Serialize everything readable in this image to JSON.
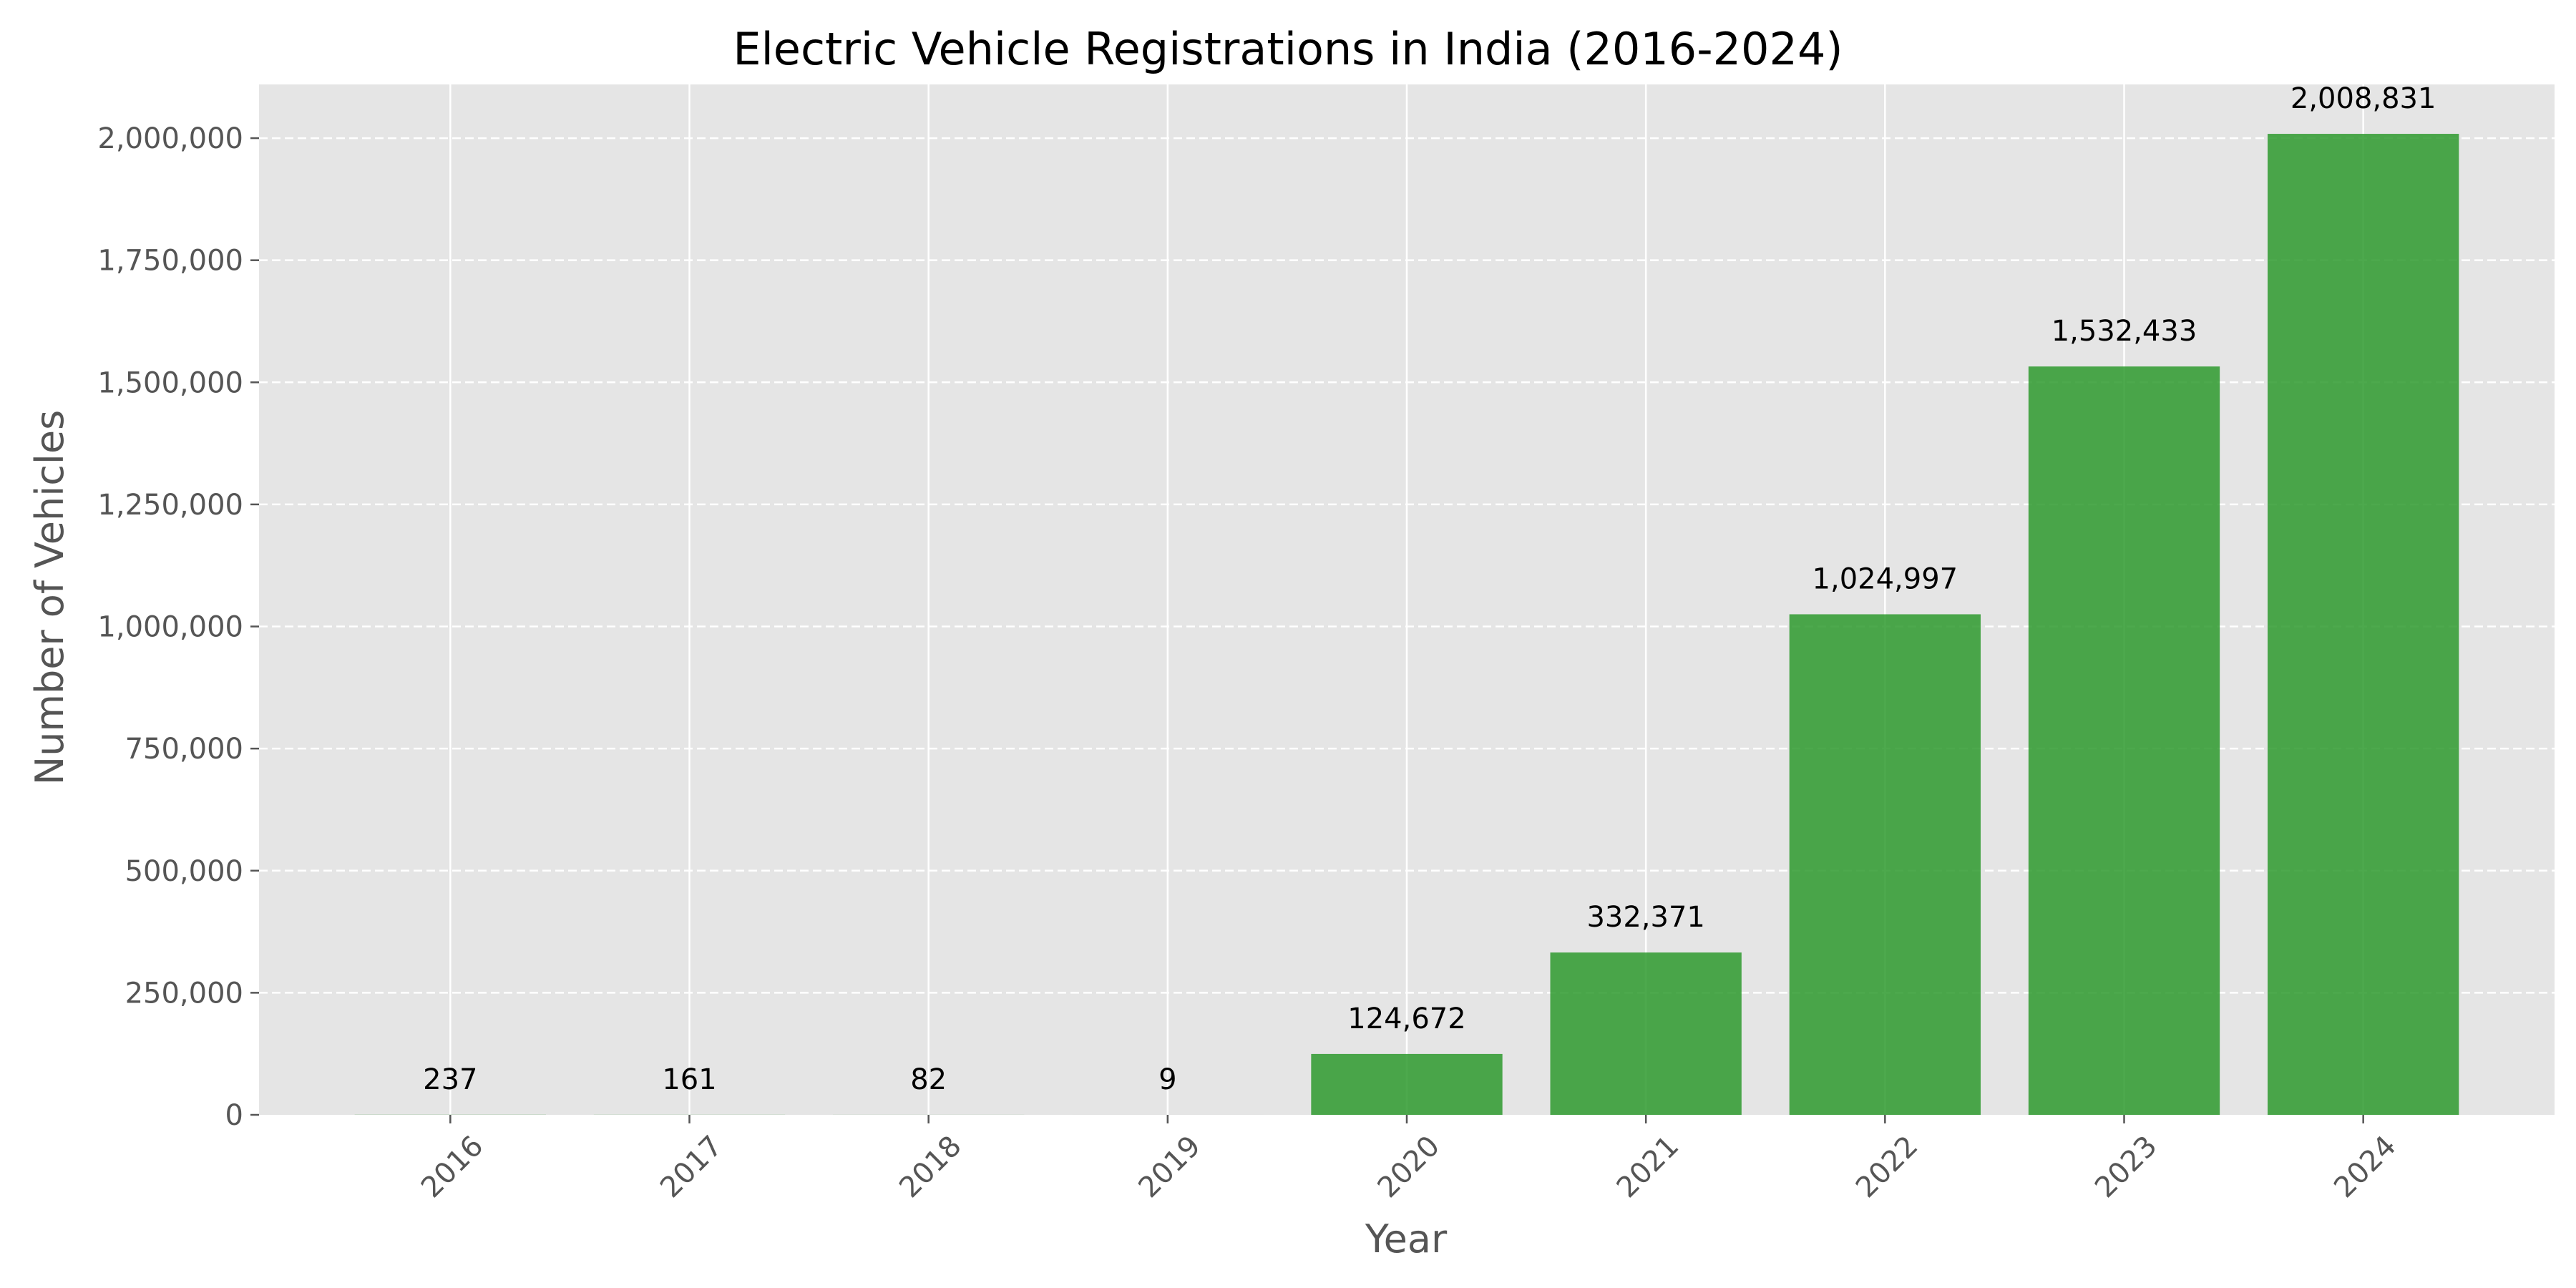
{
  "chart_data": {
    "type": "bar",
    "title": "Electric Vehicle Registrations in India (2016-2024)",
    "xlabel": "Year",
    "ylabel": "Number of Vehicles",
    "categories": [
      "2016",
      "2017",
      "2018",
      "2019",
      "2020",
      "2021",
      "2022",
      "2023",
      "2024"
    ],
    "values": [
      237,
      161,
      82,
      9,
      124672,
      332371,
      1024997,
      1532433,
      2008831
    ],
    "data_labels": [
      "237",
      "161",
      "82",
      "9",
      "124,672",
      "332,371",
      "1,024,997",
      "1,532,433",
      "2,008,831"
    ],
    "ylim": [
      0,
      2110000
    ],
    "yticks": [
      0,
      250000,
      500000,
      750000,
      1000000,
      1250000,
      1500000,
      1750000,
      2000000
    ],
    "ytick_labels": [
      "0",
      "250,000",
      "500,000",
      "750,000",
      "1,000,000",
      "1,250,000",
      "1,500,000",
      "1,750,000",
      "2,000,000"
    ],
    "grid": true,
    "legend": false,
    "colors": {
      "bar": "#2e9a2e",
      "plot_background": "#e5e5e5",
      "grid": "#ffffff"
    }
  }
}
